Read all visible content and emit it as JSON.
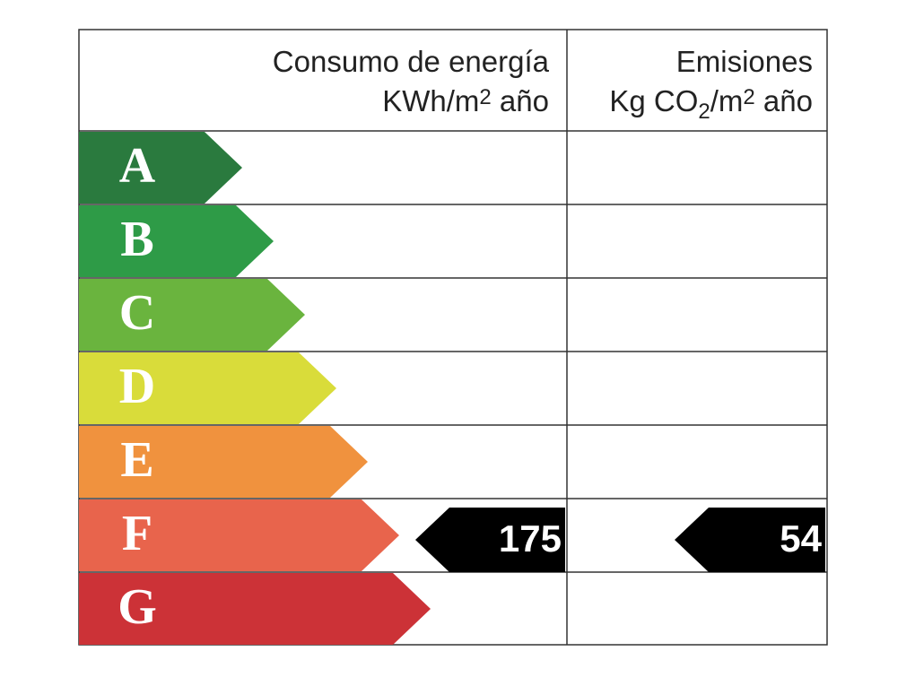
{
  "energy_header": {
    "title": "Consumo de energía",
    "unit": [
      "KWh/m",
      "2",
      " año"
    ]
  },
  "emissions_header": {
    "title": "Emisiones",
    "unit": [
      "Kg CO",
      "2",
      "/m",
      "2",
      " año"
    ]
  },
  "ratings": [
    {
      "letter": "A",
      "color": "#2a7a3e"
    },
    {
      "letter": "B",
      "color": "#2e9b47"
    },
    {
      "letter": "C",
      "color": "#6ab43e"
    },
    {
      "letter": "D",
      "color": "#d9dc3a"
    },
    {
      "letter": "E",
      "color": "#f0923e"
    },
    {
      "letter": "F",
      "color": "#e8644c"
    },
    {
      "letter": "G",
      "color": "#cc3237"
    }
  ],
  "rating": "F",
  "energy_value": 175,
  "emissions_value": 54
}
